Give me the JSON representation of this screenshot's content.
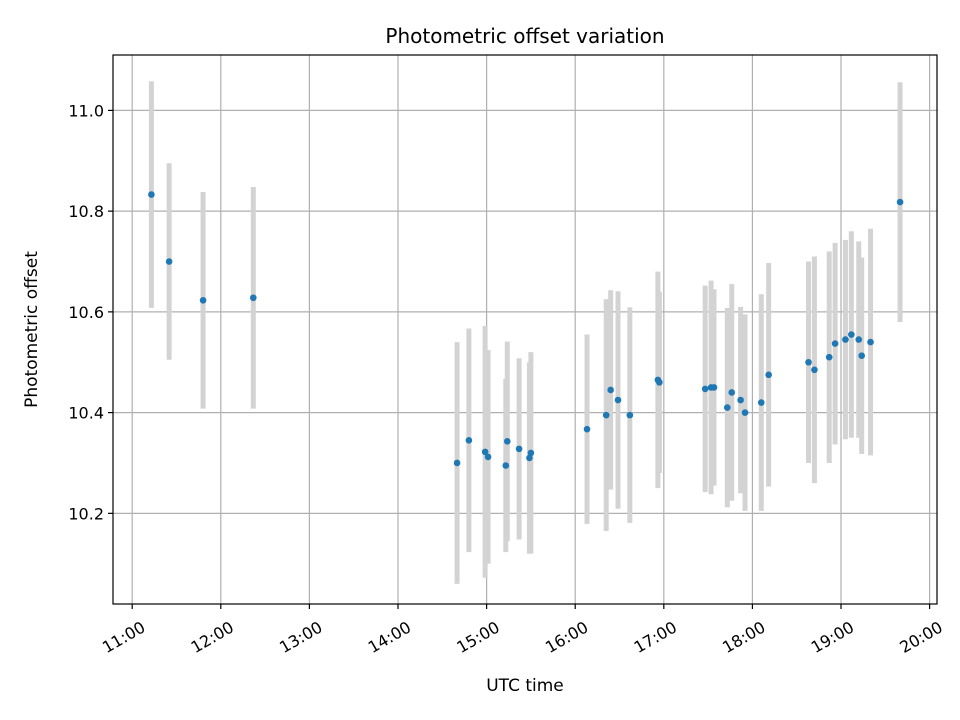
{
  "chart_data": {
    "type": "scatter",
    "title": "Photometric offset variation",
    "xlabel": "UTC time",
    "ylabel": "Photometric offset",
    "x_ticks": [
      "11:00",
      "12:00",
      "13:00",
      "14:00",
      "15:00",
      "16:00",
      "17:00",
      "18:00",
      "19:00",
      "20:00"
    ],
    "y_ticks": [
      "10.2",
      "10.4",
      "10.6",
      "10.8",
      "11.0"
    ],
    "xlim": [
      "10:47",
      "20:05"
    ],
    "ylim": [
      10.02,
      11.11
    ],
    "grid": true,
    "marker_color": "#1f77b4",
    "errorbar_color": "#d3d3d3",
    "points": [
      {
        "x": "11:13",
        "y": 10.833,
        "yerr": 0.225
      },
      {
        "x": "11:25",
        "y": 10.7,
        "yerr": 0.195
      },
      {
        "x": "11:48",
        "y": 10.623,
        "yerr": 0.215
      },
      {
        "x": "12:22",
        "y": 10.628,
        "yerr": 0.22
      },
      {
        "x": "14:40",
        "y": 10.3,
        "yerr": 0.24
      },
      {
        "x": "14:48",
        "y": 10.345,
        "yerr": 0.222
      },
      {
        "x": "14:59",
        "y": 10.322,
        "yerr": 0.25
      },
      {
        "x": "15:01",
        "y": 10.312,
        "yerr": 0.212
      },
      {
        "x": "15:13",
        "y": 10.295,
        "yerr": 0.172
      },
      {
        "x": "15:14",
        "y": 10.343,
        "yerr": 0.198
      },
      {
        "x": "15:22",
        "y": 10.328,
        "yerr": 0.18
      },
      {
        "x": "15:29",
        "y": 10.31,
        "yerr": 0.19
      },
      {
        "x": "15:30",
        "y": 10.32,
        "yerr": 0.2
      },
      {
        "x": "16:08",
        "y": 10.367,
        "yerr": 0.188
      },
      {
        "x": "16:21",
        "y": 10.395,
        "yerr": 0.23
      },
      {
        "x": "16:24",
        "y": 10.445,
        "yerr": 0.198
      },
      {
        "x": "16:29",
        "y": 10.425,
        "yerr": 0.216
      },
      {
        "x": "16:37",
        "y": 10.395,
        "yerr": 0.214
      },
      {
        "x": "16:56",
        "y": 10.465,
        "yerr": 0.215
      },
      {
        "x": "16:57",
        "y": 10.46,
        "yerr": 0.18
      },
      {
        "x": "17:28",
        "y": 10.447,
        "yerr": 0.205
      },
      {
        "x": "17:32",
        "y": 10.45,
        "yerr": 0.212
      },
      {
        "x": "17:34",
        "y": 10.45,
        "yerr": 0.195
      },
      {
        "x": "17:43",
        "y": 10.41,
        "yerr": 0.198
      },
      {
        "x": "17:46",
        "y": 10.44,
        "yerr": 0.215
      },
      {
        "x": "17:52",
        "y": 10.425,
        "yerr": 0.185
      },
      {
        "x": "17:55",
        "y": 10.4,
        "yerr": 0.195
      },
      {
        "x": "18:06",
        "y": 10.42,
        "yerr": 0.215
      },
      {
        "x": "18:11",
        "y": 10.475,
        "yerr": 0.222
      },
      {
        "x": "18:38",
        "y": 10.5,
        "yerr": 0.2
      },
      {
        "x": "18:42",
        "y": 10.485,
        "yerr": 0.225
      },
      {
        "x": "18:52",
        "y": 10.51,
        "yerr": 0.21
      },
      {
        "x": "18:56",
        "y": 10.537,
        "yerr": 0.2
      },
      {
        "x": "19:03",
        "y": 10.545,
        "yerr": 0.198
      },
      {
        "x": "19:07",
        "y": 10.555,
        "yerr": 0.205
      },
      {
        "x": "19:12",
        "y": 10.545,
        "yerr": 0.195
      },
      {
        "x": "19:14",
        "y": 10.513,
        "yerr": 0.195
      },
      {
        "x": "19:20",
        "y": 10.54,
        "yerr": 0.225
      },
      {
        "x": "19:40",
        "y": 10.818,
        "yerr": 0.238
      }
    ]
  }
}
